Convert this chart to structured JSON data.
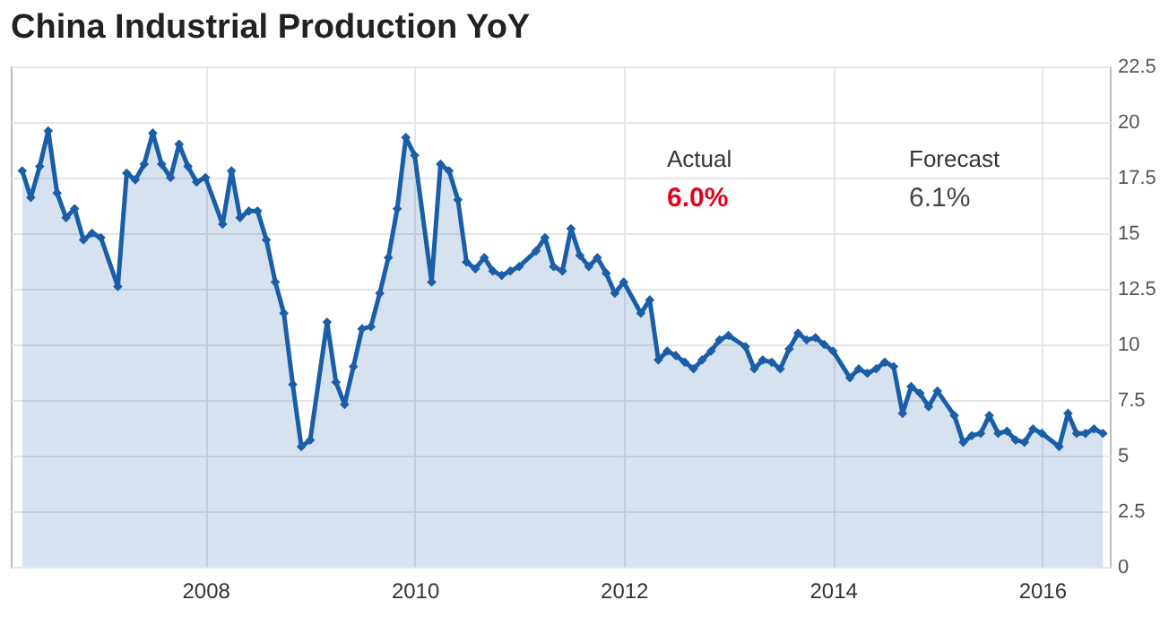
{
  "chart_data": {
    "type": "area",
    "title": "China Industrial Production YoY",
    "annotations": [
      "Actual",
      "6.0%",
      "Forecast",
      "6.1%"
    ],
    "x": [
      "2006-04",
      "2006-05",
      "2006-06",
      "2006-07",
      "2006-08",
      "2006-09",
      "2006-10",
      "2006-11",
      "2006-12",
      "2007-01",
      "2007-03",
      "2007-04",
      "2007-05",
      "2007-06",
      "2007-07",
      "2007-08",
      "2007-09",
      "2007-10",
      "2007-11",
      "2007-12",
      "2008-01",
      "2008-03",
      "2008-04",
      "2008-05",
      "2008-06",
      "2008-07",
      "2008-08",
      "2008-09",
      "2008-10",
      "2008-11",
      "2008-12",
      "2009-01",
      "2009-03",
      "2009-04",
      "2009-05",
      "2009-06",
      "2009-07",
      "2009-08",
      "2009-09",
      "2009-10",
      "2009-11",
      "2009-12",
      "2010-01",
      "2010-03",
      "2010-04",
      "2010-05",
      "2010-06",
      "2010-07",
      "2010-08",
      "2010-09",
      "2010-10",
      "2010-11",
      "2010-12",
      "2011-01",
      "2011-03",
      "2011-04",
      "2011-05",
      "2011-06",
      "2011-07",
      "2011-08",
      "2011-09",
      "2011-10",
      "2011-11",
      "2011-12",
      "2012-01",
      "2012-03",
      "2012-04",
      "2012-05",
      "2012-06",
      "2012-07",
      "2012-08",
      "2012-09",
      "2012-10",
      "2012-11",
      "2012-12",
      "2013-01",
      "2013-03",
      "2013-04",
      "2013-05",
      "2013-06",
      "2013-07",
      "2013-08",
      "2013-09",
      "2013-10",
      "2013-11",
      "2013-12",
      "2014-01",
      "2014-03",
      "2014-04",
      "2014-05",
      "2014-06",
      "2014-07",
      "2014-08",
      "2014-09",
      "2014-10",
      "2014-11",
      "2014-12",
      "2015-01",
      "2015-03",
      "2015-04",
      "2015-05",
      "2015-06",
      "2015-07",
      "2015-08",
      "2015-09",
      "2015-10",
      "2015-11",
      "2015-12",
      "2016-01",
      "2016-03",
      "2016-04",
      "2016-05",
      "2016-06",
      "2016-07",
      "2016-08"
    ],
    "series": [
      {
        "color": "#1a5ea8",
        "values": [
          17.8,
          16.6,
          18.0,
          19.6,
          16.8,
          15.7,
          16.1,
          14.7,
          15.0,
          14.8,
          12.6,
          17.7,
          17.4,
          18.1,
          19.5,
          18.1,
          17.5,
          19.0,
          18.0,
          17.3,
          17.5,
          15.4,
          17.8,
          15.7,
          16.0,
          16.0,
          14.7,
          12.8,
          11.4,
          8.2,
          5.4,
          5.7,
          11.0,
          8.3,
          7.3,
          9.0,
          10.7,
          10.8,
          12.3,
          13.9,
          16.1,
          19.3,
          18.5,
          12.8,
          18.1,
          17.8,
          16.5,
          13.7,
          13.4,
          13.9,
          13.3,
          13.1,
          13.3,
          13.5,
          14.2,
          14.8,
          13.5,
          13.3,
          15.2,
          14.0,
          13.5,
          13.9,
          13.2,
          12.3,
          12.8,
          11.4,
          12.0,
          9.3,
          9.7,
          9.5,
          9.2,
          8.9,
          9.3,
          9.7,
          10.2,
          10.4,
          9.9,
          8.9,
          9.3,
          9.2,
          8.9,
          9.8,
          10.5,
          10.2,
          10.3,
          10.0,
          9.7,
          8.5,
          8.9,
          8.7,
          8.9,
          9.2,
          9.0,
          6.9,
          8.1,
          7.8,
          7.2,
          7.9,
          6.8,
          5.6,
          5.9,
          6.0,
          6.8,
          6.0,
          6.1,
          5.7,
          5.6,
          6.2,
          6.0,
          5.4,
          6.9,
          6.0,
          6.0,
          6.2,
          6.0
        ]
      }
    ],
    "xlim": [
      "2006-02-20",
      "2016-08-25"
    ],
    "xticks": [
      "2008",
      "2010",
      "2012",
      "2014",
      "2016"
    ],
    "ylim": [
      0,
      22.5
    ],
    "yticks": [
      0,
      2.5,
      5,
      7.5,
      10,
      12.5,
      15,
      17.5,
      20,
      22.5
    ],
    "grid": true,
    "marker": "diamond",
    "line_style": "solid"
  }
}
